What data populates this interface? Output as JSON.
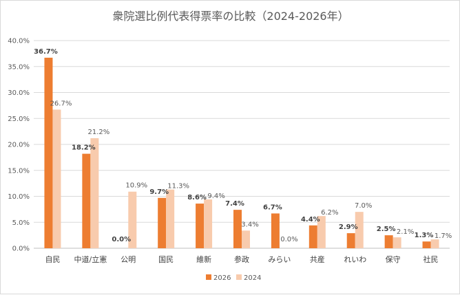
{
  "chart_data": {
    "type": "bar",
    "title": "衆院選比例代表得票率の比較（2024-2026年）",
    "xlabel": "",
    "ylabel": "",
    "ylim": [
      0,
      40
    ],
    "yticks": [
      "0.0%",
      "5.0%",
      "10.0%",
      "15.0%",
      "20.0%",
      "25.0%",
      "30.0%",
      "35.0%",
      "40.0%"
    ],
    "grid": true,
    "legend": "bottom",
    "categories": [
      "自民",
      "中道/立憲",
      "公明",
      "国民",
      "維新",
      "参政",
      "みらい",
      "共産",
      "れいわ",
      "保守",
      "社民"
    ],
    "series": [
      {
        "name": "2026",
        "color": "#ED7D31",
        "values": [
          36.7,
          18.2,
          0.0,
          9.7,
          8.6,
          7.4,
          6.7,
          4.4,
          2.9,
          2.5,
          1.3
        ],
        "labels": [
          "36.7%",
          "18.2%",
          "0.0%",
          "9.7%",
          "8.6%",
          "7.4%",
          "6.7%",
          "4.4%",
          "2.9%",
          "2.5%",
          "1.3%"
        ]
      },
      {
        "name": "2024",
        "color": "#F8CBAD",
        "values": [
          26.7,
          21.2,
          10.9,
          11.3,
          9.4,
          3.4,
          0.0,
          6.2,
          7.0,
          2.1,
          1.7
        ],
        "labels": [
          "26.7%",
          "21.2%",
          "10.9%",
          "11.3%",
          "9.4%",
          "3.4%",
          "0.0%",
          "6.2%",
          "7.0%",
          "2.1%",
          "1.7%"
        ]
      }
    ]
  }
}
